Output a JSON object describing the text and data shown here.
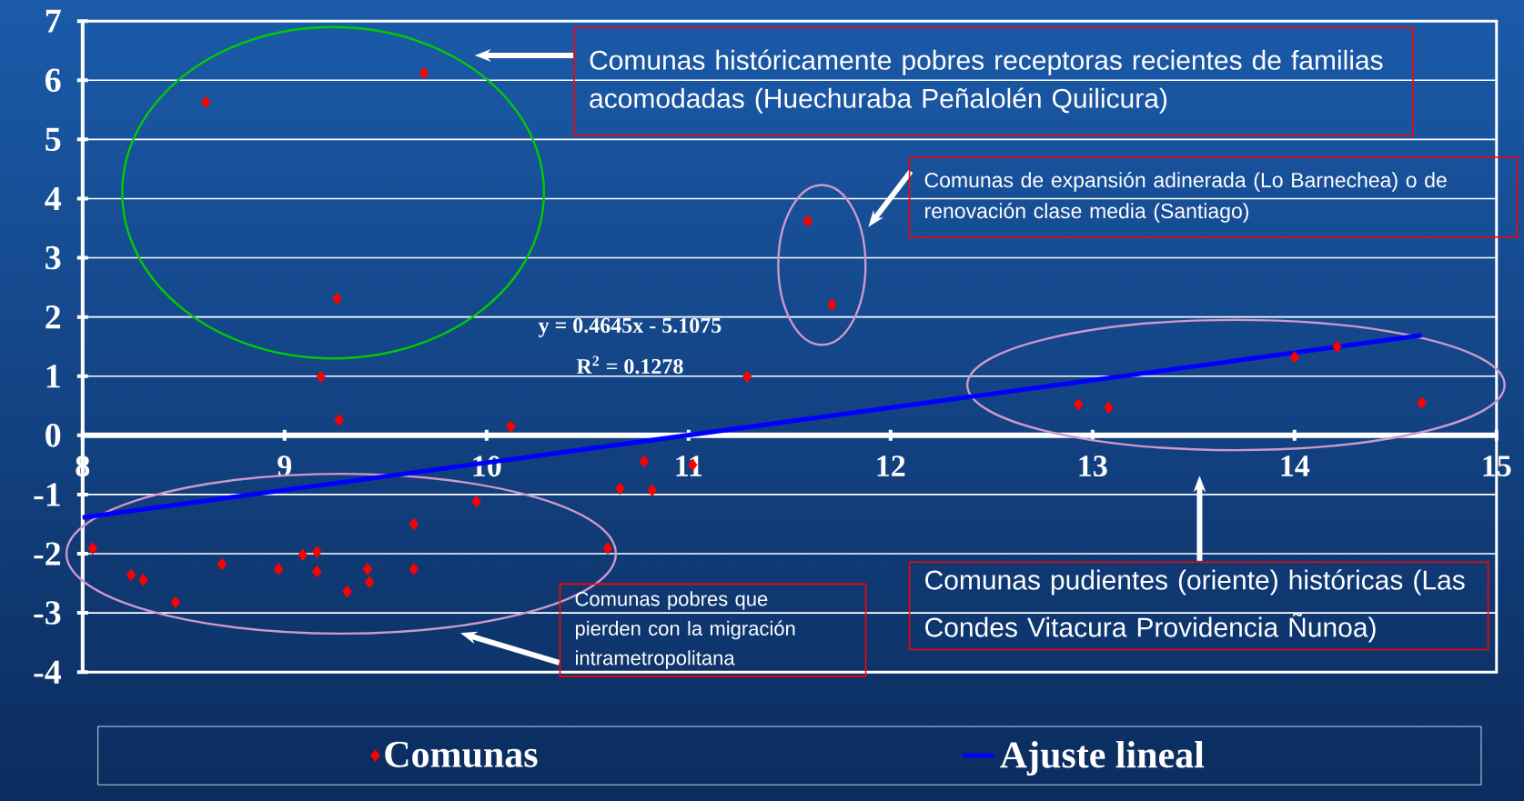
{
  "chart_data": {
    "type": "scatter",
    "xlim": [
      8,
      15
    ],
    "ylim": [
      -4,
      7
    ],
    "xticks": [
      8,
      9,
      10,
      11,
      12,
      13,
      14,
      15
    ],
    "yticks": [
      -4,
      -3,
      -2,
      -1,
      0,
      1,
      2,
      3,
      4,
      5,
      6,
      7
    ],
    "grid": "y",
    "legend": "bottom",
    "series": [
      {
        "name": "Comunas",
        "marker": "diamond",
        "color": "#ff0000",
        "x": [
          8.61,
          9.69,
          9.26,
          9.18,
          9.27,
          10.12,
          9.95,
          11.29,
          11.59,
          11.71,
          10.78,
          11.02,
          10.66,
          10.82,
          10.6,
          9.64,
          9.64,
          8.05,
          8.24,
          8.3,
          8.46,
          8.69,
          8.97,
          9.09,
          9.16,
          9.16,
          9.31,
          9.41,
          9.42,
          12.93,
          13.08,
          14.0,
          14.21,
          14.63
        ],
        "values": [
          5.63,
          6.12,
          2.31,
          0.99,
          0.26,
          0.15,
          -1.12,
          0.99,
          3.62,
          2.21,
          -0.44,
          -0.5,
          -0.9,
          -0.93,
          -1.91,
          -1.5,
          -2.26,
          -1.91,
          -2.36,
          -2.44,
          -2.82,
          -2.18,
          -2.26,
          -2.02,
          -1.97,
          -2.3,
          -2.64,
          -2.26,
          -2.48,
          0.52,
          0.47,
          1.32,
          1.5,
          0.55
        ]
      },
      {
        "name": "Ajuste lineal",
        "type": "line",
        "marker": "none",
        "line_style": "solid",
        "color": "#0000ff",
        "x": [
          8,
          14.63
        ],
        "values": [
          -1.39,
          1.69
        ]
      }
    ],
    "annotations": [
      "Comunas históricamente pobres receptoras recientes de familias acomodadas (Huechuraba Peñalolén Quilicura)",
      "Comunas de expansión adinerada  (Lo Barnechea) o de renovación clase media (Santiago)",
      "Comunas pobres que pierden con la migración intrametropolitana",
      "Comunas pudientes (oriente) históricas (Las Condes Vitacura Providencia Ñunoa)",
      "y = 0.4645x - 5.1075",
      "R$^{2}$ = 0.1278"
    ]
  }
}
